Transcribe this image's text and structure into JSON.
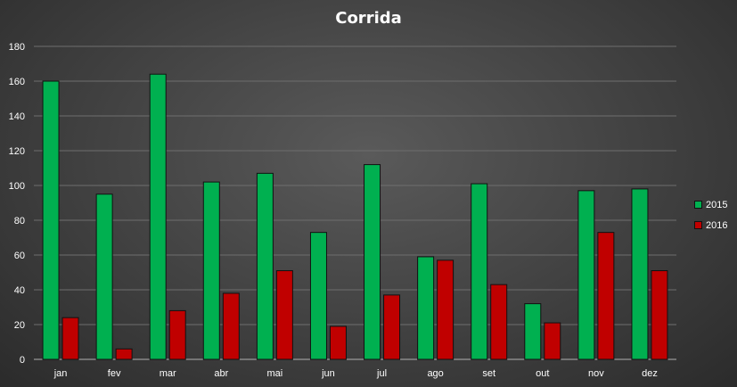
{
  "chart_data": {
    "type": "bar",
    "title": "Corrida",
    "categories": [
      "jan",
      "fev",
      "mar",
      "abr",
      "mai",
      "jun",
      "jul",
      "ago",
      "set",
      "out",
      "nov",
      "dez"
    ],
    "series": [
      {
        "name": "2015",
        "color": "#00b050",
        "values": [
          160,
          95,
          164,
          102,
          107,
          73,
          112,
          59,
          101,
          32,
          97,
          98
        ]
      },
      {
        "name": "2016",
        "color": "#c00000",
        "values": [
          24,
          6,
          28,
          38,
          51,
          19,
          37,
          57,
          43,
          21,
          73,
          51
        ]
      }
    ],
    "ylim": [
      0,
      180
    ],
    "yticks": [
      0,
      20,
      40,
      60,
      80,
      100,
      120,
      140,
      160,
      180
    ],
    "xlabel": "",
    "ylabel": "",
    "grid": true,
    "legend": "right"
  }
}
